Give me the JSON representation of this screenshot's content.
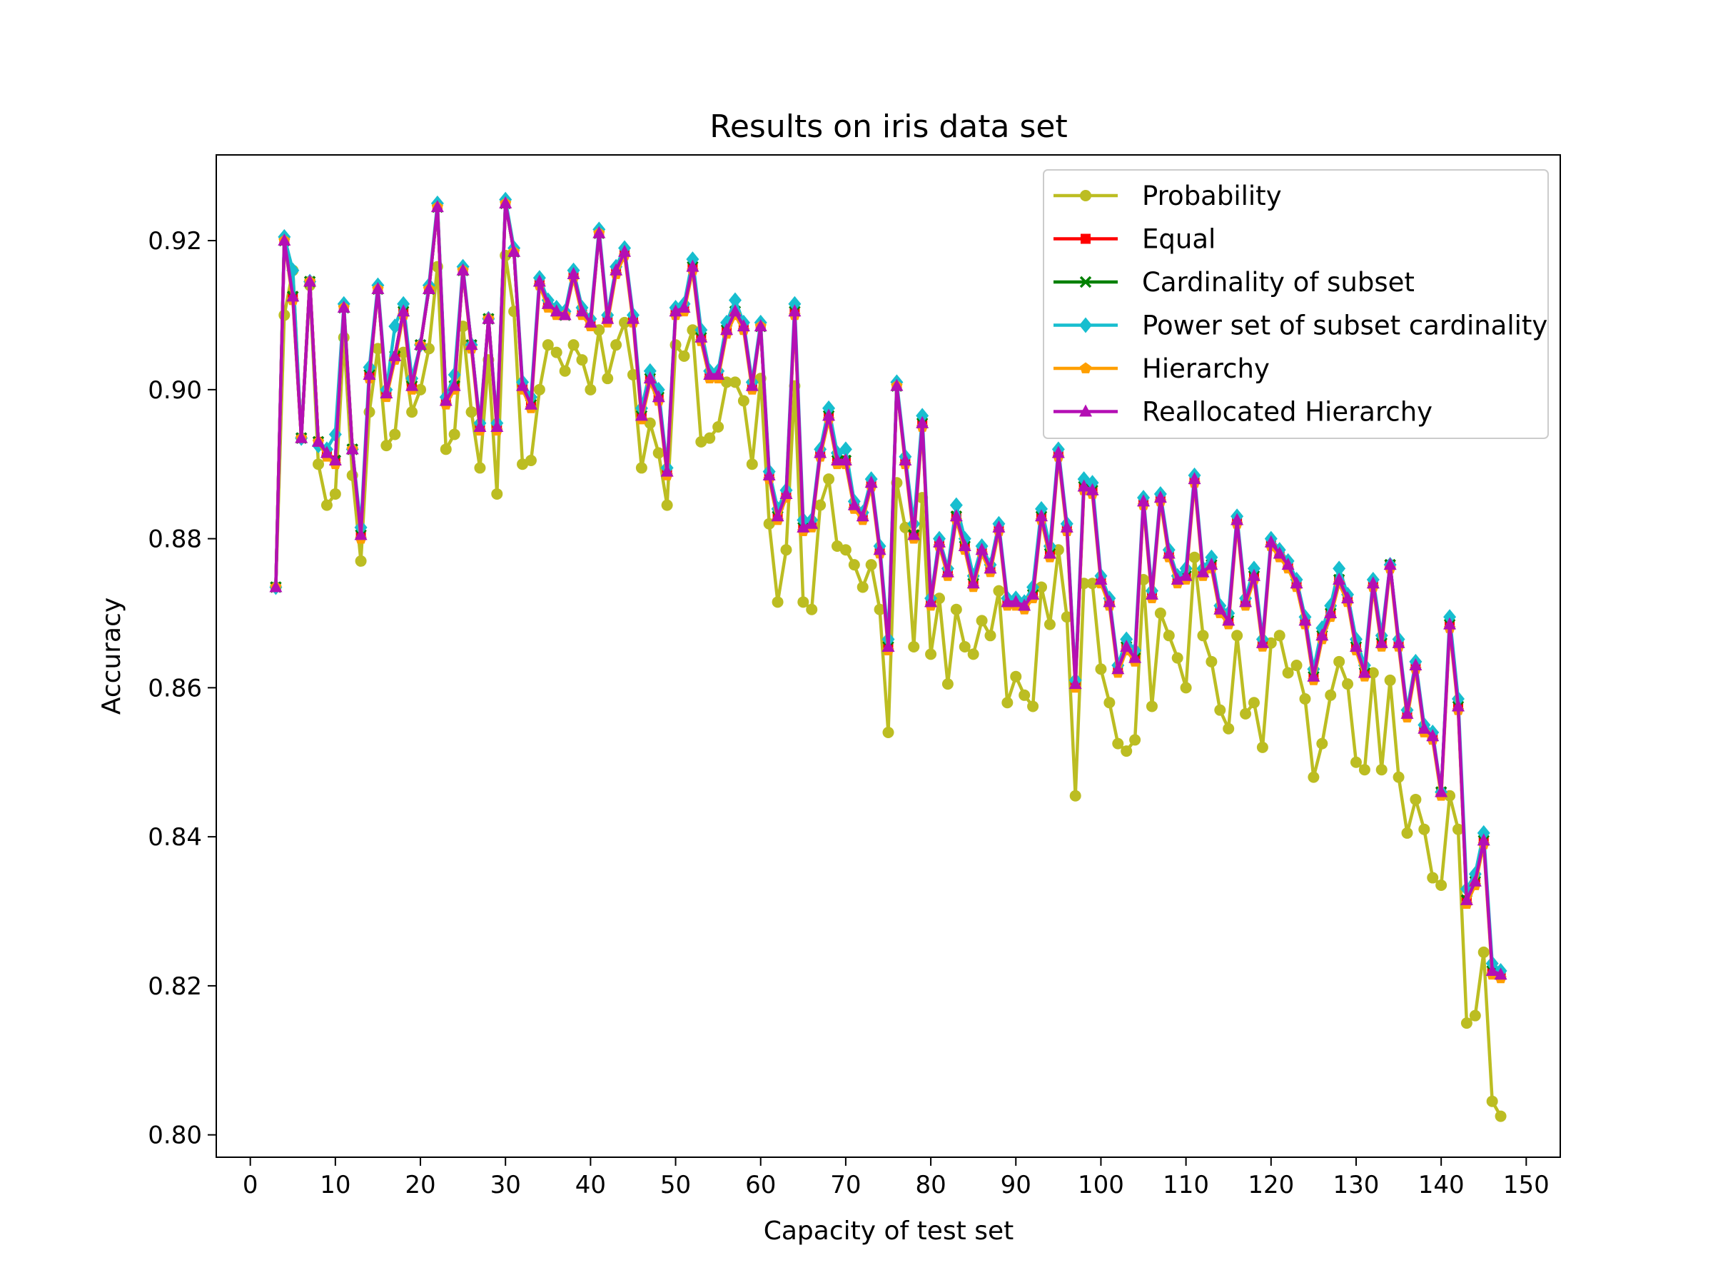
{
  "chart_data": {
    "type": "line",
    "title": "Results on iris data set",
    "xlabel": "Capacity of test set",
    "ylabel": "Accuracy",
    "xlim": [
      -4,
      154
    ],
    "ylim": [
      0.797,
      0.9315
    ],
    "xticks": [
      "0",
      "10",
      "20",
      "30",
      "40",
      "50",
      "60",
      "70",
      "80",
      "90",
      "100",
      "110",
      "120",
      "130",
      "140",
      "150"
    ],
    "yticks": [
      "0.80",
      "0.82",
      "0.84",
      "0.86",
      "0.88",
      "0.90",
      "0.92"
    ],
    "legend_position": "upper-right",
    "grid": false,
    "x": [
      3,
      4,
      5,
      6,
      7,
      8,
      9,
      10,
      11,
      12,
      13,
      14,
      15,
      16,
      17,
      18,
      19,
      20,
      21,
      22,
      23,
      24,
      25,
      26,
      27,
      28,
      29,
      30,
      31,
      32,
      33,
      34,
      35,
      36,
      37,
      38,
      39,
      40,
      41,
      42,
      43,
      44,
      45,
      46,
      47,
      48,
      49,
      50,
      51,
      52,
      53,
      54,
      55,
      56,
      57,
      58,
      59,
      60,
      61,
      62,
      63,
      64,
      65,
      66,
      67,
      68,
      69,
      70,
      71,
      72,
      73,
      74,
      75,
      76,
      77,
      78,
      79,
      80,
      81,
      82,
      83,
      84,
      85,
      86,
      87,
      88,
      89,
      90,
      91,
      92,
      93,
      94,
      95,
      96,
      97,
      98,
      99,
      100,
      101,
      102,
      103,
      104,
      105,
      106,
      107,
      108,
      109,
      110,
      111,
      112,
      113,
      114,
      115,
      116,
      117,
      118,
      119,
      120,
      121,
      122,
      123,
      124,
      125,
      126,
      127,
      128,
      129,
      130,
      131,
      132,
      133,
      134,
      135,
      136,
      137,
      138,
      139,
      140,
      141,
      142,
      143,
      144,
      145,
      146,
      147
    ],
    "series": [
      {
        "name": "Probability",
        "color": "#bcbd22",
        "marker": "circle",
        "values": [
          0.8735,
          0.91,
          0.916,
          0.8935,
          0.914,
          0.89,
          0.8845,
          0.886,
          0.907,
          0.8885,
          0.877,
          0.897,
          0.9055,
          0.8925,
          0.894,
          0.905,
          0.897,
          0.9,
          0.9055,
          0.9165,
          0.892,
          0.894,
          0.9085,
          0.897,
          0.8895,
          0.904,
          0.886,
          0.918,
          0.9105,
          0.89,
          0.8905,
          0.9,
          0.906,
          0.905,
          0.9025,
          0.906,
          0.904,
          0.9,
          0.908,
          0.9015,
          0.906,
          0.909,
          0.902,
          0.8895,
          0.8955,
          0.8915,
          0.8845,
          0.906,
          0.9045,
          0.908,
          0.893,
          0.8935,
          0.895,
          0.901,
          0.901,
          0.8985,
          0.89,
          0.9015,
          0.882,
          0.8715,
          0.8785,
          0.9005,
          0.8715,
          0.8705,
          0.8845,
          0.888,
          0.879,
          0.8785,
          0.8765,
          0.8735,
          0.8765,
          0.8705,
          0.854,
          0.8875,
          0.8815,
          0.8655,
          0.8855,
          0.8645,
          0.872,
          0.8605,
          0.8705,
          0.8655,
          0.8645,
          0.869,
          0.867,
          0.873,
          0.858,
          0.8615,
          0.859,
          0.8575,
          0.8735,
          0.8685,
          0.8785,
          0.8695,
          0.8455,
          0.874,
          0.874,
          0.8625,
          0.858,
          0.8525,
          0.8515,
          0.853,
          0.8745,
          0.8575,
          0.87,
          0.867,
          0.864,
          0.86,
          0.8775,
          0.867,
          0.8635,
          0.857,
          0.8545,
          0.867,
          0.8565,
          0.858,
          0.852,
          0.866,
          0.867,
          0.862,
          0.863,
          0.8585,
          0.848,
          0.8525,
          0.859,
          0.8635,
          0.8605,
          0.85,
          0.849,
          0.862,
          0.849,
          0.861,
          0.848,
          0.8405,
          0.845,
          0.841,
          0.8345,
          0.8335,
          0.8455,
          0.841,
          0.815,
          0.816,
          0.8245,
          0.8045,
          0.8025
        ]
      },
      {
        "name": "Equal",
        "color": "#ff0000",
        "marker": "square",
        "values": [
          0.8735,
          0.92,
          0.9125,
          0.8935,
          0.9145,
          0.893,
          0.8915,
          0.8905,
          0.911,
          0.892,
          0.8805,
          0.902,
          0.9135,
          0.8995,
          0.9045,
          0.9105,
          0.9005,
          0.906,
          0.9135,
          0.9245,
          0.8985,
          0.9005,
          0.916,
          0.906,
          0.895,
          0.9095,
          0.895,
          0.925,
          0.9185,
          0.9005,
          0.898,
          0.9145,
          0.9115,
          0.9105,
          0.91,
          0.9155,
          0.9105,
          0.909,
          0.921,
          0.9095,
          0.916,
          0.9185,
          0.9095,
          0.8965,
          0.9015,
          0.899,
          0.889,
          0.9105,
          0.911,
          0.9165,
          0.907,
          0.902,
          0.902,
          0.908,
          0.9105,
          0.9085,
          0.9005,
          0.9085,
          0.8885,
          0.883,
          0.886,
          0.9105,
          0.8815,
          0.882,
          0.8915,
          0.8965,
          0.8905,
          0.8905,
          0.8845,
          0.883,
          0.8875,
          0.8785,
          0.8655,
          0.9005,
          0.8905,
          0.8805,
          0.8955,
          0.8715,
          0.8795,
          0.8755,
          0.883,
          0.879,
          0.874,
          0.8785,
          0.876,
          0.8815,
          0.8715,
          0.8715,
          0.871,
          0.8725,
          0.883,
          0.878,
          0.8915,
          0.8815,
          0.8605,
          0.887,
          0.8865,
          0.8745,
          0.8715,
          0.8625,
          0.8655,
          0.864,
          0.885,
          0.8725,
          0.8855,
          0.878,
          0.8745,
          0.875,
          0.888,
          0.8755,
          0.8765,
          0.8705,
          0.869,
          0.8825,
          0.8715,
          0.875,
          0.866,
          0.8795,
          0.878,
          0.8765,
          0.874,
          0.869,
          0.8615,
          0.867,
          0.87,
          0.8745,
          0.872,
          0.8655,
          0.862,
          0.874,
          0.866,
          0.8765,
          0.866,
          0.8565,
          0.863,
          0.8545,
          0.8535,
          0.846,
          0.8685,
          0.8575,
          0.8315,
          0.834,
          0.8395,
          0.822,
          0.8215
        ]
      },
      {
        "name": "Cardinality of subset",
        "color": "#008000",
        "marker": "x",
        "values": [
          0.8735,
          0.92,
          0.9125,
          0.8935,
          0.9145,
          0.893,
          0.8915,
          0.8905,
          0.911,
          0.892,
          0.8805,
          0.902,
          0.9135,
          0.8995,
          0.9045,
          0.9105,
          0.9005,
          0.906,
          0.9135,
          0.9245,
          0.8985,
          0.9005,
          0.916,
          0.906,
          0.895,
          0.9095,
          0.895,
          0.925,
          0.9185,
          0.9005,
          0.898,
          0.9145,
          0.9115,
          0.9105,
          0.91,
          0.9155,
          0.9105,
          0.909,
          0.921,
          0.9095,
          0.916,
          0.9185,
          0.9095,
          0.8965,
          0.9015,
          0.899,
          0.889,
          0.9105,
          0.911,
          0.9165,
          0.907,
          0.902,
          0.902,
          0.908,
          0.9105,
          0.9085,
          0.9005,
          0.9085,
          0.8885,
          0.883,
          0.886,
          0.9105,
          0.8815,
          0.882,
          0.8915,
          0.8965,
          0.8905,
          0.8905,
          0.8845,
          0.883,
          0.8875,
          0.8785,
          0.8655,
          0.9005,
          0.8905,
          0.8805,
          0.8955,
          0.8715,
          0.8795,
          0.8755,
          0.883,
          0.879,
          0.874,
          0.8785,
          0.876,
          0.8815,
          0.8715,
          0.8715,
          0.871,
          0.8725,
          0.883,
          0.878,
          0.8915,
          0.8815,
          0.8605,
          0.887,
          0.8865,
          0.8745,
          0.8715,
          0.8625,
          0.8655,
          0.864,
          0.885,
          0.8725,
          0.8855,
          0.878,
          0.8745,
          0.875,
          0.888,
          0.8755,
          0.8765,
          0.8705,
          0.869,
          0.8825,
          0.8715,
          0.875,
          0.866,
          0.8795,
          0.878,
          0.8765,
          0.874,
          0.869,
          0.8615,
          0.867,
          0.87,
          0.8745,
          0.872,
          0.8655,
          0.862,
          0.874,
          0.866,
          0.8765,
          0.866,
          0.8565,
          0.863,
          0.8545,
          0.8535,
          0.846,
          0.8685,
          0.8575,
          0.8315,
          0.834,
          0.8395,
          0.822,
          0.8215
        ]
      },
      {
        "name": "Power set of subset cardinality",
        "color": "#17becf",
        "marker": "diamond",
        "values": [
          0.8735,
          0.9205,
          0.916,
          0.8935,
          0.9145,
          0.8925,
          0.892,
          0.894,
          0.9115,
          0.892,
          0.8815,
          0.903,
          0.914,
          0.9,
          0.9085,
          0.9115,
          0.9015,
          0.906,
          0.914,
          0.925,
          0.899,
          0.902,
          0.9165,
          0.906,
          0.8955,
          0.9095,
          0.8955,
          0.9255,
          0.919,
          0.901,
          0.899,
          0.915,
          0.912,
          0.911,
          0.9105,
          0.916,
          0.911,
          0.9095,
          0.9215,
          0.91,
          0.9165,
          0.919,
          0.91,
          0.8975,
          0.9025,
          0.9,
          0.8895,
          0.911,
          0.9115,
          0.9175,
          0.908,
          0.9025,
          0.9025,
          0.909,
          0.912,
          0.909,
          0.901,
          0.909,
          0.889,
          0.884,
          0.8865,
          0.9115,
          0.8825,
          0.8825,
          0.892,
          0.8975,
          0.8915,
          0.892,
          0.885,
          0.8835,
          0.888,
          0.879,
          0.8665,
          0.901,
          0.891,
          0.882,
          0.8965,
          0.872,
          0.88,
          0.876,
          0.8845,
          0.88,
          0.875,
          0.879,
          0.8765,
          0.882,
          0.872,
          0.872,
          0.8715,
          0.8735,
          0.884,
          0.879,
          0.892,
          0.882,
          0.861,
          0.888,
          0.8875,
          0.875,
          0.872,
          0.863,
          0.8665,
          0.865,
          0.8855,
          0.873,
          0.886,
          0.8785,
          0.875,
          0.876,
          0.8885,
          0.876,
          0.8775,
          0.871,
          0.87,
          0.883,
          0.872,
          0.876,
          0.8665,
          0.88,
          0.8785,
          0.877,
          0.8745,
          0.8695,
          0.8625,
          0.868,
          0.871,
          0.876,
          0.8725,
          0.8665,
          0.863,
          0.8745,
          0.867,
          0.8765,
          0.8665,
          0.857,
          0.8635,
          0.855,
          0.854,
          0.846,
          0.8695,
          0.8585,
          0.833,
          0.835,
          0.8405,
          0.823,
          0.822
        ]
      },
      {
        "name": "Hierarchy",
        "color": "#ff9f00",
        "marker": "pentagon",
        "values": [
          0.8735,
          0.92,
          0.912,
          0.8935,
          0.9145,
          0.893,
          0.891,
          0.89,
          0.911,
          0.892,
          0.88,
          0.9015,
          0.9135,
          0.899,
          0.904,
          0.91,
          0.9,
          0.906,
          0.9135,
          0.9245,
          0.898,
          0.9,
          0.916,
          0.9055,
          0.8945,
          0.9095,
          0.8945,
          0.925,
          0.9185,
          0.9,
          0.8975,
          0.914,
          0.911,
          0.91,
          0.91,
          0.915,
          0.91,
          0.9085,
          0.921,
          0.909,
          0.9155,
          0.918,
          0.909,
          0.896,
          0.901,
          0.8985,
          0.8885,
          0.91,
          0.9105,
          0.916,
          0.9065,
          0.9015,
          0.9015,
          0.9075,
          0.91,
          0.908,
          0.9,
          0.9085,
          0.888,
          0.8825,
          0.8855,
          0.91,
          0.881,
          0.8815,
          0.891,
          0.896,
          0.89,
          0.89,
          0.884,
          0.8825,
          0.887,
          0.878,
          0.865,
          0.9005,
          0.89,
          0.88,
          0.895,
          0.871,
          0.879,
          0.875,
          0.8825,
          0.8785,
          0.8735,
          0.878,
          0.8755,
          0.881,
          0.871,
          0.871,
          0.8705,
          0.872,
          0.8825,
          0.8775,
          0.891,
          0.881,
          0.86,
          0.8865,
          0.886,
          0.874,
          0.871,
          0.862,
          0.865,
          0.8635,
          0.8845,
          0.872,
          0.885,
          0.8775,
          0.874,
          0.8745,
          0.8875,
          0.875,
          0.876,
          0.87,
          0.8685,
          0.882,
          0.871,
          0.8745,
          0.8655,
          0.879,
          0.8775,
          0.876,
          0.8735,
          0.8685,
          0.861,
          0.8665,
          0.8695,
          0.874,
          0.8715,
          0.865,
          0.8615,
          0.8735,
          0.8655,
          0.876,
          0.8655,
          0.856,
          0.8625,
          0.854,
          0.853,
          0.8455,
          0.868,
          0.857,
          0.831,
          0.8335,
          0.839,
          0.8215,
          0.821
        ]
      },
      {
        "name": "Reallocated Hierarchy",
        "color": "#b40fb4",
        "marker": "triangle",
        "values": [
          0.8735,
          0.92,
          0.9125,
          0.8935,
          0.9145,
          0.893,
          0.8915,
          0.8905,
          0.911,
          0.892,
          0.8805,
          0.902,
          0.9135,
          0.8995,
          0.9045,
          0.9105,
          0.9005,
          0.906,
          0.9135,
          0.9245,
          0.8985,
          0.9005,
          0.916,
          0.906,
          0.895,
          0.9095,
          0.895,
          0.925,
          0.9185,
          0.9005,
          0.898,
          0.9145,
          0.9115,
          0.9105,
          0.91,
          0.9155,
          0.9105,
          0.909,
          0.921,
          0.9095,
          0.916,
          0.9185,
          0.9095,
          0.8965,
          0.9015,
          0.899,
          0.889,
          0.9105,
          0.911,
          0.9165,
          0.907,
          0.902,
          0.902,
          0.908,
          0.9105,
          0.9085,
          0.9005,
          0.9085,
          0.8885,
          0.883,
          0.886,
          0.9105,
          0.8815,
          0.882,
          0.8915,
          0.8965,
          0.8905,
          0.8905,
          0.8845,
          0.883,
          0.8875,
          0.8785,
          0.8655,
          0.9005,
          0.8905,
          0.8805,
          0.8955,
          0.8715,
          0.8795,
          0.8755,
          0.883,
          0.879,
          0.874,
          0.8785,
          0.876,
          0.8815,
          0.8715,
          0.8715,
          0.871,
          0.8725,
          0.883,
          0.878,
          0.8915,
          0.8815,
          0.8605,
          0.887,
          0.8865,
          0.8745,
          0.8715,
          0.8625,
          0.8655,
          0.864,
          0.885,
          0.8725,
          0.8855,
          0.878,
          0.8745,
          0.875,
          0.888,
          0.8755,
          0.8765,
          0.8705,
          0.869,
          0.8825,
          0.8715,
          0.875,
          0.866,
          0.8795,
          0.878,
          0.8765,
          0.874,
          0.869,
          0.8615,
          0.867,
          0.87,
          0.8745,
          0.872,
          0.8655,
          0.862,
          0.874,
          0.866,
          0.8765,
          0.866,
          0.8565,
          0.863,
          0.8545,
          0.8535,
          0.846,
          0.8685,
          0.8575,
          0.8315,
          0.834,
          0.8395,
          0.822,
          0.8215
        ]
      }
    ]
  }
}
